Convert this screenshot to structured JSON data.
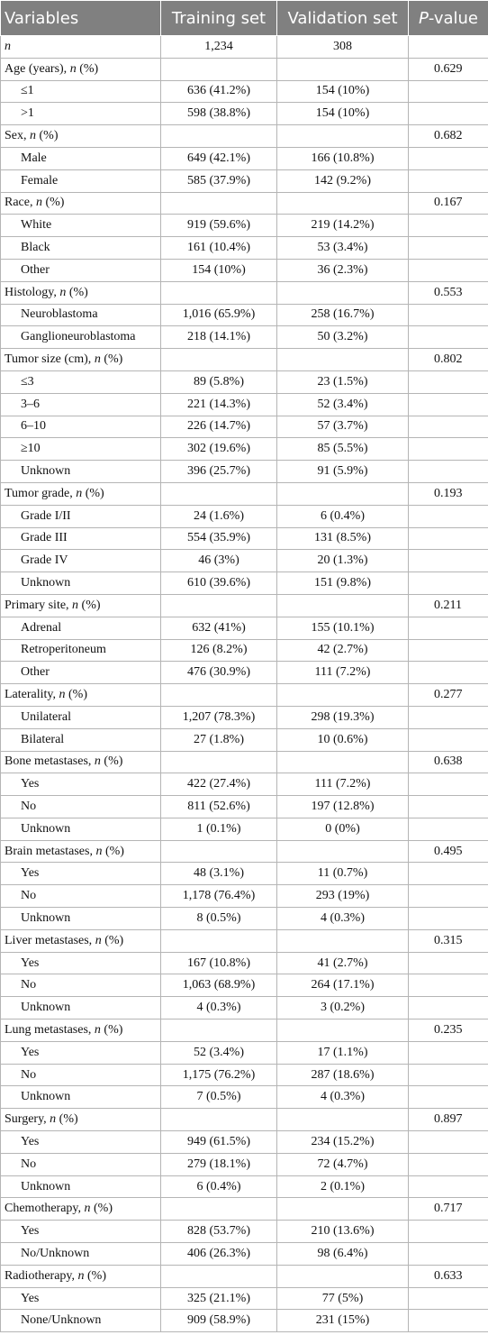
{
  "table": {
    "header": [
      "Variables",
      "Training set",
      "Validation set",
      "P-value"
    ],
    "groups": [
      {
        "label": "n",
        "training": "1,234",
        "validation": "308"
      },
      {
        "label": "Age (years), n (%)",
        "p_value": "0.629",
        "items": [
          {
            "label": "≤1",
            "training": "636 (41.2%)",
            "validation": "154 (10%)"
          },
          {
            "label": ">1",
            "training": "598 (38.8%)",
            "validation": "154 (10%)"
          }
        ]
      },
      {
        "label": "Sex, n (%)",
        "p_value": "0.682",
        "items": [
          {
            "label": "Male",
            "training": "649 (42.1%)",
            "validation": "166 (10.8%)"
          },
          {
            "label": "Female",
            "training": "585 (37.9%)",
            "validation": "142 (9.2%)"
          }
        ]
      },
      {
        "label": "Race, n (%)",
        "p_value": "0.167",
        "items": [
          {
            "label": "White",
            "training": "919 (59.6%)",
            "validation": "219 (14.2%)"
          },
          {
            "label": "Black",
            "training": "161 (10.4%)",
            "validation": "53 (3.4%)"
          },
          {
            "label": "Other",
            "training": "154 (10%)",
            "validation": "36 (2.3%)"
          }
        ]
      },
      {
        "label": "Histology, n (%)",
        "p_value": "0.553",
        "items": [
          {
            "label": "Neuroblastoma",
            "training": "1,016 (65.9%)",
            "validation": "258 (16.7%)"
          },
          {
            "label": "Ganglioneuroblastoma",
            "training": "218 (14.1%)",
            "validation": "50 (3.2%)"
          }
        ]
      },
      {
        "label": "Tumor size (cm), n (%)",
        "p_value": "0.802",
        "items": [
          {
            "label": "≤3",
            "training": "89 (5.8%)",
            "validation": "23 (1.5%)"
          },
          {
            "label": "3–6",
            "training": "221 (14.3%)",
            "validation": "52 (3.4%)"
          },
          {
            "label": "6–10",
            "training": "226 (14.7%)",
            "validation": "57 (3.7%)"
          },
          {
            "label": "≥10",
            "training": "302 (19.6%)",
            "validation": "85 (5.5%)"
          },
          {
            "label": "Unknown",
            "training": "396 (25.7%)",
            "validation": "91 (5.9%)"
          }
        ]
      },
      {
        "label": "Tumor grade, n (%)",
        "p_value": "0.193",
        "items": [
          {
            "label": "Grade I/II",
            "training": "24 (1.6%)",
            "validation": "6 (0.4%)"
          },
          {
            "label": "Grade III",
            "training": "554 (35.9%)",
            "validation": "131 (8.5%)"
          },
          {
            "label": "Grade IV",
            "training": "46 (3%)",
            "validation": "20 (1.3%)"
          },
          {
            "label": "Unknown",
            "training": "610 (39.6%)",
            "validation": "151 (9.8%)"
          }
        ]
      },
      {
        "label": "Primary site, n (%)",
        "p_value": "0.211",
        "items": [
          {
            "label": "Adrenal",
            "training": "632 (41%)",
            "validation": "155 (10.1%)"
          },
          {
            "label": "Retroperitoneum",
            "training": "126 (8.2%)",
            "validation": "42 (2.7%)"
          },
          {
            "label": "Other",
            "training": "476 (30.9%)",
            "validation": "111 (7.2%)"
          }
        ]
      },
      {
        "label": "Laterality, n (%)",
        "p_value": "0.277",
        "items": [
          {
            "label": "Unilateral",
            "training": "1,207 (78.3%)",
            "validation": "298 (19.3%)"
          },
          {
            "label": "Bilateral",
            "training": "27 (1.8%)",
            "validation": "10 (0.6%)"
          }
        ]
      },
      {
        "label": "Bone metastases, n (%)",
        "p_value": "0.638",
        "items": [
          {
            "label": "Yes",
            "training": "422 (27.4%)",
            "validation": "111 (7.2%)"
          },
          {
            "label": "No",
            "training": "811 (52.6%)",
            "validation": "197 (12.8%)"
          },
          {
            "label": "Unknown",
            "training": "1 (0.1%)",
            "validation": "0 (0%)"
          }
        ]
      },
      {
        "label": "Brain metastases, n (%)",
        "p_value": "0.495",
        "items": [
          {
            "label": "Yes",
            "training": "48 (3.1%)",
            "validation": "11 (0.7%)"
          },
          {
            "label": "No",
            "training": "1,178 (76.4%)",
            "validation": "293 (19%)"
          },
          {
            "label": "Unknown",
            "training": "8 (0.5%)",
            "validation": "4 (0.3%)"
          }
        ]
      },
      {
        "label": "Liver metastases, n (%)",
        "p_value": "0.315",
        "items": [
          {
            "label": "Yes",
            "training": "167 (10.8%)",
            "validation": "41 (2.7%)"
          },
          {
            "label": "No",
            "training": "1,063 (68.9%)",
            "validation": "264 (17.1%)"
          },
          {
            "label": "Unknown",
            "training": "4 (0.3%)",
            "validation": "3 (0.2%)"
          }
        ]
      },
      {
        "label": "Lung metastases, n (%)",
        "p_value": "0.235",
        "items": [
          {
            "label": "Yes",
            "training": "52 (3.4%)",
            "validation": "17 (1.1%)"
          },
          {
            "label": "No",
            "training": "1,175 (76.2%)",
            "validation": "287 (18.6%)"
          },
          {
            "label": "Unknown",
            "training": "7 (0.5%)",
            "validation": "4 (0.3%)"
          }
        ]
      },
      {
        "label": "Surgery, n (%)",
        "p_value": "0.897",
        "items": [
          {
            "label": "Yes",
            "training": "949 (61.5%)",
            "validation": "234 (15.2%)"
          },
          {
            "label": "No",
            "training": "279 (18.1%)",
            "validation": "72 (4.7%)"
          },
          {
            "label": "Unknown",
            "training": "6 (0.4%)",
            "validation": "2 (0.1%)"
          }
        ]
      },
      {
        "label": "Chemotherapy, n (%)",
        "p_value": "0.717",
        "items": [
          {
            "label": "Yes",
            "training": "828 (53.7%)",
            "validation": "210 (13.6%)"
          },
          {
            "label": "No/Unknown",
            "training": "406 (26.3%)",
            "validation": "98 (6.4%)"
          }
        ]
      },
      {
        "label": "Radiotherapy, n (%)",
        "p_value": "0.633",
        "items": [
          {
            "label": "Yes",
            "training": "325 (21.1%)",
            "validation": "77 (5%)"
          },
          {
            "label": "None/Unknown",
            "training": "909 (58.9%)",
            "validation": "231 (15%)"
          }
        ]
      }
    ]
  }
}
